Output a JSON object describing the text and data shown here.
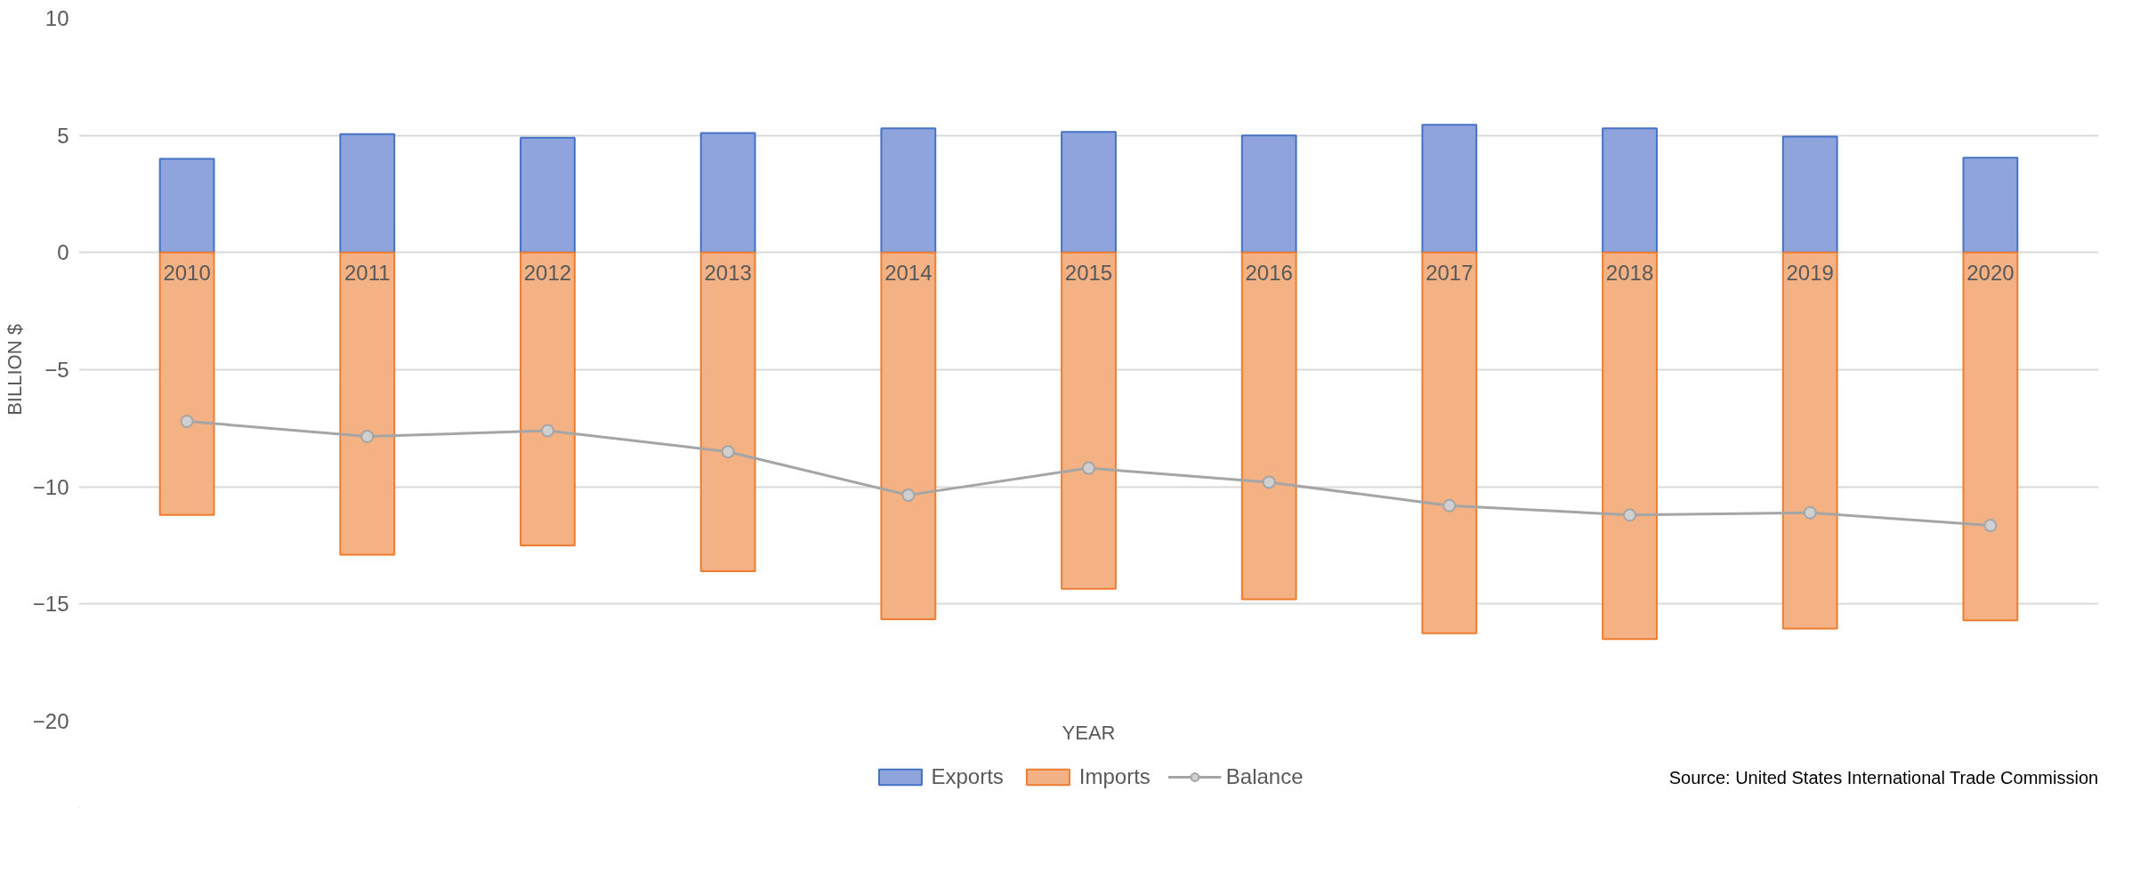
{
  "chart_data": {
    "type": "bar",
    "stacked": true,
    "xlabel": "YEAR",
    "ylabel": "BILLION $",
    "categories": [
      "2010",
      "2011",
      "2012",
      "2013",
      "2014",
      "2015",
      "2016",
      "2017",
      "2018",
      "2019",
      "2020"
    ],
    "series": [
      {
        "name": "Exports",
        "color": "#8fa3dc",
        "values": [
          4.0,
          5.05,
          4.9,
          5.1,
          5.3,
          5.15,
          5.0,
          5.45,
          5.3,
          4.95,
          4.05
        ]
      },
      {
        "name": "Imports",
        "color": "#f4b183",
        "values": [
          -11.2,
          -12.9,
          -12.5,
          -13.6,
          -15.65,
          -14.35,
          -14.8,
          -16.25,
          -16.5,
          -16.05,
          -15.7
        ]
      },
      {
        "name": "Balance",
        "type": "line",
        "color": "#a5a5a5",
        "marker": "circle",
        "values": [
          -7.2,
          -7.85,
          -7.6,
          -8.5,
          -10.35,
          -9.2,
          -9.8,
          -10.8,
          -11.2,
          -11.1,
          -11.65
        ]
      }
    ],
    "ylim": [
      -20,
      10
    ],
    "yticks": [
      -20,
      -15,
      -10,
      -5,
      0,
      5,
      10
    ],
    "grid": "y",
    "legend": "bottom",
    "annotations": [
      "Source: United States International Trade Commission"
    ]
  }
}
